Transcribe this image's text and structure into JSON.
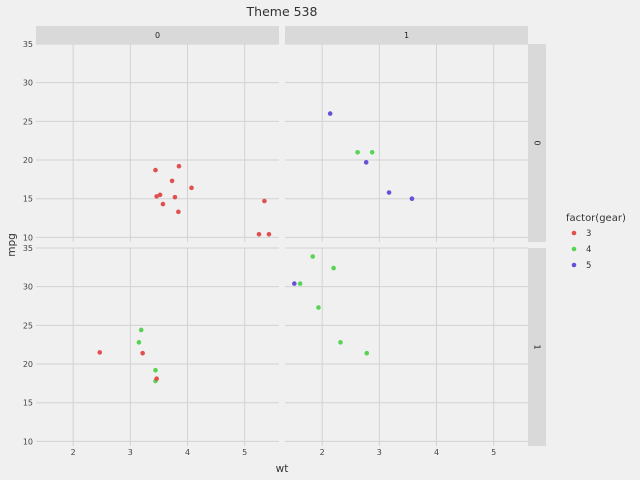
{
  "chart_data": {
    "type": "scatter",
    "title": "Theme 538",
    "xlabel": "wt",
    "ylabel": "mpg",
    "xlim": [
      1.35,
      5.6
    ],
    "ylim": [
      9.4,
      35
    ],
    "xticks": [
      2,
      3,
      4,
      5
    ],
    "yticks": [
      10,
      15,
      20,
      25,
      30,
      35
    ],
    "grid": true,
    "facet_col_labels": [
      "0",
      "1"
    ],
    "facet_row_labels": [
      "0",
      "1"
    ],
    "legend": {
      "title": "factor(gear)",
      "position": "right",
      "entries": [
        {
          "label": "3",
          "color": "#e0504f"
        },
        {
          "label": "4",
          "color": "#58d454"
        },
        {
          "label": "5",
          "color": "#6650d6"
        }
      ]
    },
    "panels": [
      {
        "row": 0,
        "col": 0,
        "points": [
          {
            "x": 3.44,
            "y": 18.7,
            "g": "3"
          },
          {
            "x": 3.46,
            "y": 15.3,
            "g": "3"
          },
          {
            "x": 3.52,
            "y": 15.5,
            "g": "3"
          },
          {
            "x": 3.57,
            "y": 14.3,
            "g": "3"
          },
          {
            "x": 3.73,
            "y": 17.3,
            "g": "3"
          },
          {
            "x": 3.78,
            "y": 15.2,
            "g": "3"
          },
          {
            "x": 3.84,
            "y": 13.3,
            "g": "3"
          },
          {
            "x": 3.85,
            "y": 19.2,
            "g": "3"
          },
          {
            "x": 4.07,
            "y": 16.4,
            "g": "3"
          },
          {
            "x": 5.25,
            "y": 10.4,
            "g": "3"
          },
          {
            "x": 5.345,
            "y": 14.7,
            "g": "3"
          },
          {
            "x": 5.424,
            "y": 10.4,
            "g": "3"
          }
        ]
      },
      {
        "row": 0,
        "col": 1,
        "points": [
          {
            "x": 2.14,
            "y": 26.0,
            "g": "5"
          },
          {
            "x": 2.62,
            "y": 21.0,
            "g": "4"
          },
          {
            "x": 2.77,
            "y": 19.7,
            "g": "5"
          },
          {
            "x": 2.875,
            "y": 21.0,
            "g": "4"
          },
          {
            "x": 3.17,
            "y": 15.8,
            "g": "5"
          },
          {
            "x": 3.57,
            "y": 15.0,
            "g": "5"
          }
        ]
      },
      {
        "row": 1,
        "col": 0,
        "points": [
          {
            "x": 2.465,
            "y": 21.5,
            "g": "3"
          },
          {
            "x": 3.15,
            "y": 22.8,
            "g": "4"
          },
          {
            "x": 3.19,
            "y": 24.4,
            "g": "4"
          },
          {
            "x": 3.215,
            "y": 21.4,
            "g": "3"
          },
          {
            "x": 3.44,
            "y": 19.2,
            "g": "4"
          },
          {
            "x": 3.44,
            "y": 17.8,
            "g": "4"
          },
          {
            "x": 3.46,
            "y": 18.1,
            "g": "3"
          }
        ]
      },
      {
        "row": 1,
        "col": 1,
        "points": [
          {
            "x": 1.513,
            "y": 30.4,
            "g": "5"
          },
          {
            "x": 1.615,
            "y": 30.4,
            "g": "4"
          },
          {
            "x": 1.835,
            "y": 33.9,
            "g": "4"
          },
          {
            "x": 1.935,
            "y": 27.3,
            "g": "4"
          },
          {
            "x": 2.2,
            "y": 32.4,
            "g": "4"
          },
          {
            "x": 2.32,
            "y": 22.8,
            "g": "4"
          },
          {
            "x": 2.78,
            "y": 21.4,
            "g": "4"
          }
        ]
      }
    ]
  }
}
